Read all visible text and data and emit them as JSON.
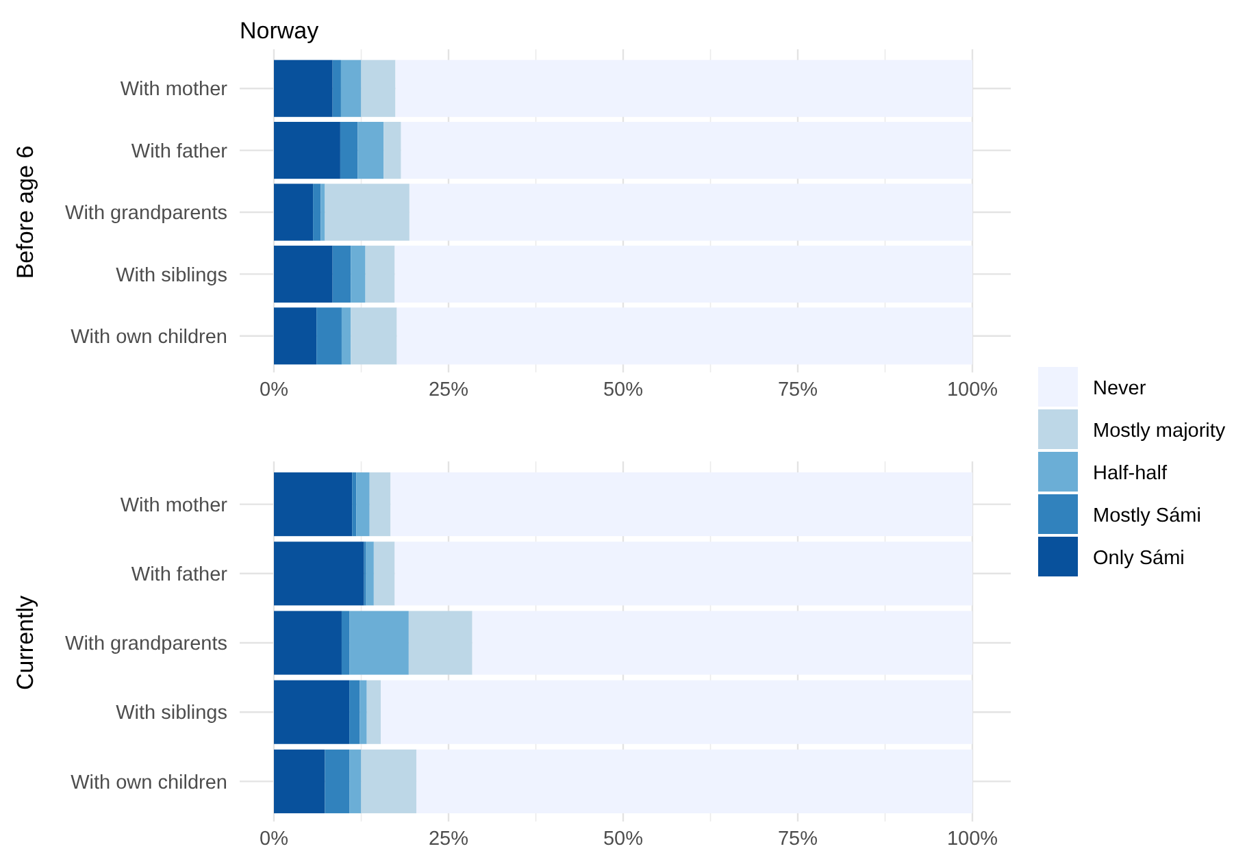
{
  "chart_data": [
    {
      "type": "bar",
      "title": "Norway",
      "ylabel": "Before age 6",
      "orientation": "horizontal",
      "stacked": true,
      "grid": true,
      "legend": "right",
      "xlim": [
        0,
        100
      ],
      "xticks": [
        {
          "value": 0,
          "label": "0%"
        },
        {
          "value": 25,
          "label": "25%"
        },
        {
          "value": 50,
          "label": "50%"
        },
        {
          "value": 75,
          "label": "75%"
        },
        {
          "value": 100,
          "label": "100%"
        }
      ],
      "categories": [
        "With mother",
        "With father",
        "With grandparents",
        "With siblings",
        "With own children"
      ],
      "series": [
        {
          "name": "Only Sámi",
          "color": "#08519c",
          "values": [
            8.4,
            9.5,
            5.6,
            8.4,
            6.1
          ]
        },
        {
          "name": "Mostly Sámi",
          "color": "#3182bd",
          "values": [
            1.2,
            2.5,
            1.1,
            2.6,
            3.6
          ]
        },
        {
          "name": "Half-half",
          "color": "#6baed6",
          "values": [
            2.9,
            3.7,
            0.6,
            2.1,
            1.3
          ]
        },
        {
          "name": "Mostly majority",
          "color": "#bdd7e7",
          "values": [
            4.9,
            2.5,
            12.1,
            4.2,
            6.6
          ]
        },
        {
          "name": "Never",
          "color": "#eff3ff",
          "values": [
            82.6,
            81.8,
            80.6,
            82.7,
            82.4
          ]
        }
      ]
    },
    {
      "type": "bar",
      "ylabel": "Currently",
      "orientation": "horizontal",
      "stacked": true,
      "grid": true,
      "xlim": [
        0,
        100
      ],
      "xticks": [
        {
          "value": 0,
          "label": "0%"
        },
        {
          "value": 25,
          "label": "25%"
        },
        {
          "value": 50,
          "label": "50%"
        },
        {
          "value": 75,
          "label": "75%"
        },
        {
          "value": 100,
          "label": "100%"
        }
      ],
      "categories": [
        "With mother",
        "With father",
        "With grandparents",
        "With siblings",
        "With own children"
      ],
      "series": [
        {
          "color": "#08519c",
          "values": [
            11.2,
            12.9,
            9.7,
            10.8,
            7.3
          ]
        },
        {
          "color": "#3182bd",
          "values": [
            0.6,
            0.3,
            1.1,
            1.5,
            3.5
          ]
        },
        {
          "color": "#6baed6",
          "values": [
            1.9,
            1.1,
            8.5,
            1.0,
            1.7
          ]
        },
        {
          "color": "#bdd7e7",
          "values": [
            3.0,
            3.0,
            9.1,
            2.0,
            7.9
          ]
        },
        {
          "color": "#eff3ff",
          "values": [
            83.3,
            82.7,
            71.6,
            84.7,
            79.6
          ]
        }
      ]
    }
  ]
}
